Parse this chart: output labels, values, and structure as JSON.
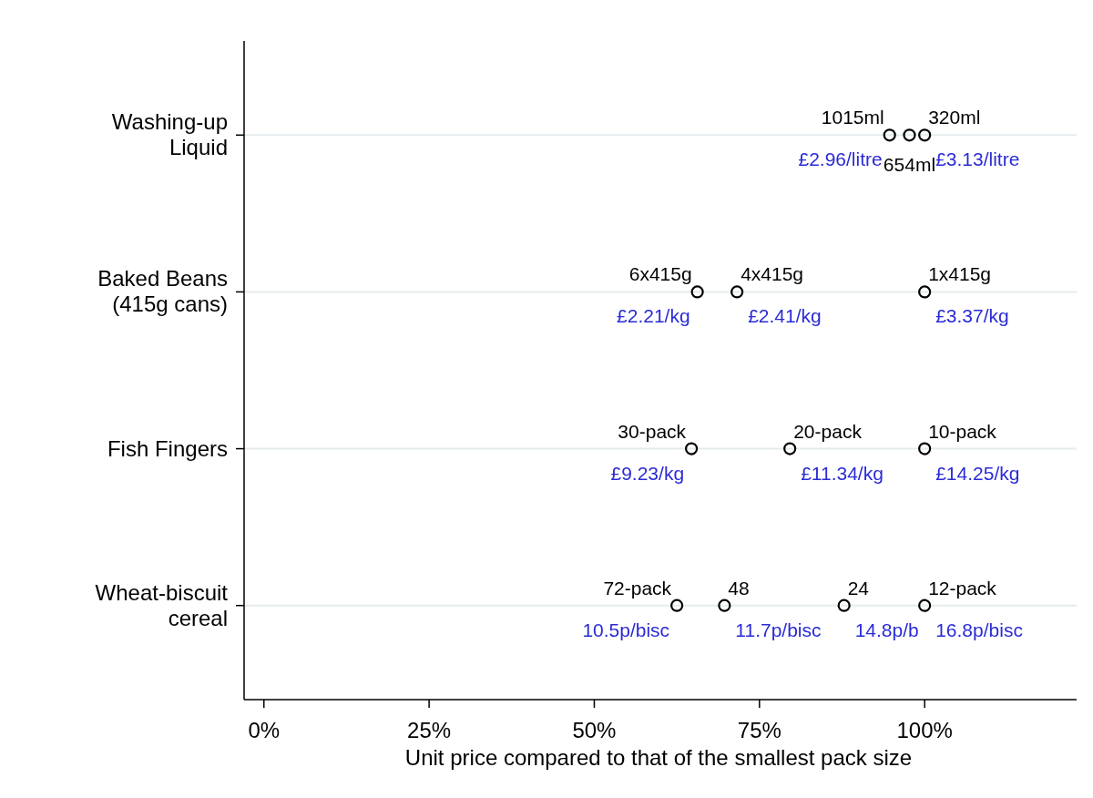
{
  "chart_data": {
    "type": "scatter",
    "orientation": "horizontal",
    "xlabel": "Unit price compared to that of the smallest pack size",
    "categories": [
      "Washing-up Liquid",
      "Baked Beans (415g cans)",
      "Fish Fingers",
      "Wheat-biscuit cereal"
    ],
    "xlim": [
      -3,
      123
    ],
    "xticks": [
      {
        "value": 0,
        "label": "0%"
      },
      {
        "value": 25,
        "label": "25%"
      },
      {
        "value": 50,
        "label": "50%"
      },
      {
        "value": 75,
        "label": "75%"
      },
      {
        "value": 100,
        "label": "100%"
      }
    ],
    "grid": "y",
    "marker": "circle",
    "series": [
      {
        "color": "#000000",
        "values": [
          94.7,
          65.6,
          64.7,
          62.5
        ]
      },
      {
        "color": "#000000",
        "values": [
          97.7,
          71.6,
          79.6,
          69.7
        ]
      },
      {
        "color": "#000000",
        "values": [
          100,
          100,
          100,
          87.8
        ]
      },
      {
        "color": "#000000",
        "values": [
          null,
          null,
          null,
          100
        ]
      }
    ],
    "annotations": [
      {
        "text": "1015ml",
        "x": 94.7,
        "y": "Washing-up Liquid"
      },
      {
        "text": "654ml",
        "x": 97.7,
        "y": "Washing-up Liquid"
      },
      {
        "text": "320ml",
        "x": 100,
        "y": "Washing-up Liquid"
      },
      {
        "text": "6x415g",
        "x": 65.6,
        "y": "Baked Beans (415g cans)"
      },
      {
        "text": "4x415g",
        "x": 71.6,
        "y": "Baked Beans (415g cans)"
      },
      {
        "text": "1x415g",
        "x": 100,
        "y": "Baked Beans (415g cans)"
      },
      {
        "text": "30-pack",
        "x": 64.7,
        "y": "Fish Fingers"
      },
      {
        "text": "20-pack",
        "x": 79.6,
        "y": "Fish Fingers"
      },
      {
        "text": "10-pack",
        "x": 100,
        "y": "Fish Fingers"
      },
      {
        "text": "72-pack",
        "x": 62.5,
        "y": "Wheat-biscuit cereal"
      },
      {
        "text": "48",
        "x": 69.7,
        "y": "Wheat-biscuit cereal"
      },
      {
        "text": "24",
        "x": 87.8,
        "y": "Wheat-biscuit cereal"
      },
      {
        "text": "12-pack",
        "x": 100,
        "y": "Wheat-biscuit cereal"
      },
      {
        "text": "£2.96/litre",
        "x": 94.7,
        "y": "Washing-up Liquid"
      },
      {
        "text": "£3.13/litre",
        "x": 100,
        "y": "Washing-up Liquid"
      },
      {
        "text": "£2.21/kg",
        "x": 65.6,
        "y": "Baked Beans (415g cans)"
      },
      {
        "text": "£2.41/kg",
        "x": 71.6,
        "y": "Baked Beans (415g cans)"
      },
      {
        "text": "£3.37/kg",
        "x": 100,
        "y": "Baked Beans (415g cans)"
      },
      {
        "text": "£9.23/kg",
        "x": 64.7,
        "y": "Fish Fingers"
      },
      {
        "text": "£11.34/kg",
        "x": 79.6,
        "y": "Fish Fingers"
      },
      {
        "text": "£14.25/kg",
        "x": 100,
        "y": "Fish Fingers"
      },
      {
        "text": "10.5p/bisc",
        "x": 62.5,
        "y": "Wheat-biscuit cereal"
      },
      {
        "text": "11.7p/bisc",
        "x": 69.7,
        "y": "Wheat-biscuit cereal"
      },
      {
        "text": "14.8p/b",
        "x": 87.8,
        "y": "Wheat-biscuit cereal"
      },
      {
        "text": "16.8p/bisc",
        "x": 100,
        "y": "Wheat-biscuit cereal"
      }
    ]
  }
}
